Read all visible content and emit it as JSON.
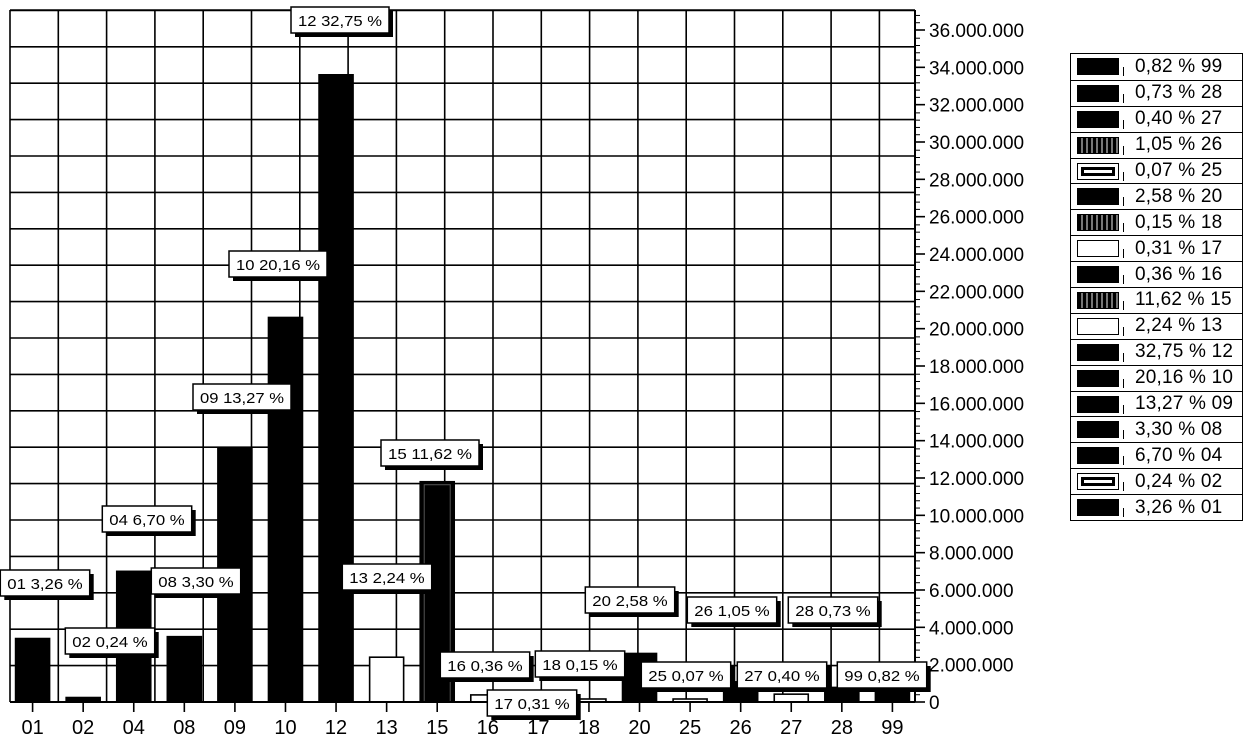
{
  "chart_data": {
    "type": "bar",
    "categories": [
      "01",
      "02",
      "04",
      "08",
      "09",
      "10",
      "12",
      "13",
      "15",
      "16",
      "17",
      "18",
      "20",
      "25",
      "26",
      "27",
      "28",
      "99"
    ],
    "values": [
      3400000,
      240000,
      7000000,
      3500000,
      13600000,
      20600000,
      33600000,
      2400000,
      11800000,
      380000,
      320000,
      160000,
      2600000,
      80000,
      1080000,
      420000,
      780000,
      860000
    ],
    "fills": [
      "black",
      "black",
      "black",
      "black",
      "black",
      "black",
      "black",
      "white",
      "black",
      "white",
      "white",
      "white",
      "black",
      "white",
      "black",
      "white",
      "black",
      "black"
    ],
    "data_labels": [
      "01 3,26 %",
      "02 0,24 %",
      "04 6,70 %",
      "08 3,30 %",
      "09 13,27 %",
      "10 20,16 %",
      "12 32,75 %",
      "13 2,24 %",
      "15 11,62 %",
      "16 0,36 %",
      "17 0,31 %",
      "18 0,15 %",
      "20 2,58 %",
      "25 0,07 %",
      "26 1,05 %",
      "27 0,40 %",
      "28 0,73 %",
      "99 0,82 %"
    ],
    "y_ticks": [
      "0",
      "2.000.000",
      "4.000.000",
      "6.000.000",
      "8.000.000",
      "10.000.000",
      "12.000.000",
      "14.000.000",
      "16.000.000",
      "18.000.000",
      "20.000.000",
      "22.000.000",
      "24.000.000",
      "26.000.000",
      "28.000.000",
      "30.000.000",
      "32.000.000",
      "34.000.000",
      "36.000.000"
    ],
    "ylim": [
      0,
      36000000
    ],
    "y_axis_side": "right",
    "grid": true,
    "legend": {
      "placement": "right",
      "entries": [
        {
          "label": "0,82 % 99",
          "swatch": "black"
        },
        {
          "label": "0,73 % 28",
          "swatch": "black"
        },
        {
          "label": "0,40 % 27",
          "swatch": "black"
        },
        {
          "label": "1,05 % 26",
          "swatch": "patterned"
        },
        {
          "label": "0,07 % 25",
          "swatch": "outline-black"
        },
        {
          "label": "2,58 % 20",
          "swatch": "black"
        },
        {
          "label": "0,15 % 18",
          "swatch": "patterned"
        },
        {
          "label": "0,31 % 17",
          "swatch": "white"
        },
        {
          "label": "0,36 % 16",
          "swatch": "black"
        },
        {
          "label": "11,62 % 15",
          "swatch": "patterned"
        },
        {
          "label": "2,24 % 13",
          "swatch": "white"
        },
        {
          "label": "32,75 % 12",
          "swatch": "black"
        },
        {
          "label": "20,16 % 10",
          "swatch": "black"
        },
        {
          "label": "13,27 % 09",
          "swatch": "black"
        },
        {
          "label": "3,30 % 08",
          "swatch": "black"
        },
        {
          "label": "6,70 % 04",
          "swatch": "black"
        },
        {
          "label": "0,24 % 02",
          "swatch": "outline-black"
        },
        {
          "label": "3,26 % 01",
          "swatch": "black"
        }
      ]
    }
  }
}
